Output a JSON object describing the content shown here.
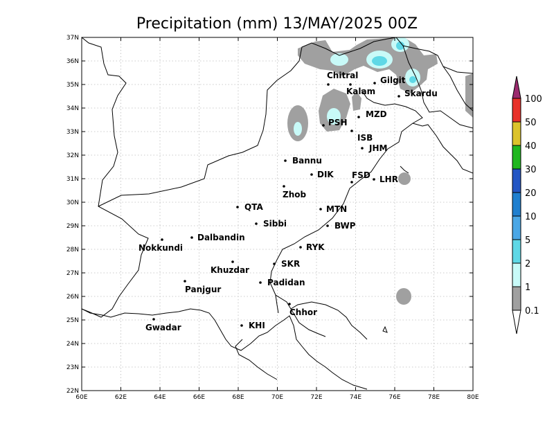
{
  "title": "Precipitation (mm) 13/MAY/2025 00Z",
  "map": {
    "lon_ticks": [
      "60E",
      "62E",
      "64E",
      "66E",
      "68E",
      "70E",
      "72E",
      "74E",
      "76E",
      "78E",
      "80E"
    ],
    "lat_ticks": [
      "22N",
      "23N",
      "24N",
      "25N",
      "26N",
      "27N",
      "28N",
      "29N",
      "30N",
      "31N",
      "32N",
      "33N",
      "34N",
      "35N",
      "36N",
      "37N"
    ],
    "lon_range": [
      60,
      80
    ],
    "lat_range": [
      22,
      37
    ],
    "grid": "dotted",
    "cities": [
      {
        "name": "Chitral",
        "lon": 72.6,
        "lat": 35.0
      },
      {
        "name": "Gilgit",
        "lon": 74.9,
        "lat": 35.0
      },
      {
        "name": "Kalam",
        "lon": 73.7,
        "lat": 34.9
      },
      {
        "name": "Skardu",
        "lon": 76.2,
        "lat": 34.5
      },
      {
        "name": "MZD",
        "lon": 74.1,
        "lat": 33.7
      },
      {
        "name": "PSH",
        "lon": 71.5,
        "lat": 33.3
      },
      {
        "name": "ISB",
        "lon": 73.0,
        "lat": 33.0
      },
      {
        "name": "JHM",
        "lon": 73.7,
        "lat": 32.3
      },
      {
        "name": "Bannu",
        "lon": 70.6,
        "lat": 32.8
      },
      {
        "name": "DIK",
        "lon": 70.9,
        "lat": 31.8
      },
      {
        "name": "FSD",
        "lon": 73.1,
        "lat": 31.4
      },
      {
        "name": "LHR",
        "lon": 74.3,
        "lat": 31.5
      },
      {
        "name": "Zhob",
        "lon": 69.4,
        "lat": 31.3
      },
      {
        "name": "QTA",
        "lon": 67.0,
        "lat": 30.2
      },
      {
        "name": "MTN",
        "lon": 71.5,
        "lat": 30.2
      },
      {
        "name": "Sibbi",
        "lon": 67.9,
        "lat": 29.5
      },
      {
        "name": "BWP",
        "lon": 71.7,
        "lat": 29.4
      },
      {
        "name": "Dalbandin",
        "lon": 64.4,
        "lat": 28.9
      },
      {
        "name": "Nokkundi",
        "lon": 62.8,
        "lat": 28.8
      },
      {
        "name": "RYK",
        "lon": 70.3,
        "lat": 28.4
      },
      {
        "name": "SKR",
        "lon": 68.9,
        "lat": 27.7
      },
      {
        "name": "Khuzdar",
        "lon": 66.6,
        "lat": 27.8
      },
      {
        "name": "Padidan",
        "lon": 68.1,
        "lat": 26.9
      },
      {
        "name": "Panjgur",
        "lon": 64.1,
        "lat": 26.9
      },
      {
        "name": "Chhor",
        "lon": 69.8,
        "lat": 25.5
      },
      {
        "name": "KHI",
        "lon": 67.0,
        "lat": 24.9
      },
      {
        "name": "Gwadar",
        "lon": 62.3,
        "lat": 25.1
      }
    ]
  },
  "colorbar": {
    "levels": [
      "100",
      "50",
      "40",
      "30",
      "20",
      "10",
      "5",
      "2",
      "1",
      "0.1"
    ],
    "colors": [
      "#9b2a6e",
      "#e8312a",
      "#dcc32b",
      "#20b71f",
      "#2356c4",
      "#1f7fcf",
      "#4aa7e6",
      "#5fd8e6",
      "#c8faf8",
      "#a0a0a0"
    ]
  }
}
